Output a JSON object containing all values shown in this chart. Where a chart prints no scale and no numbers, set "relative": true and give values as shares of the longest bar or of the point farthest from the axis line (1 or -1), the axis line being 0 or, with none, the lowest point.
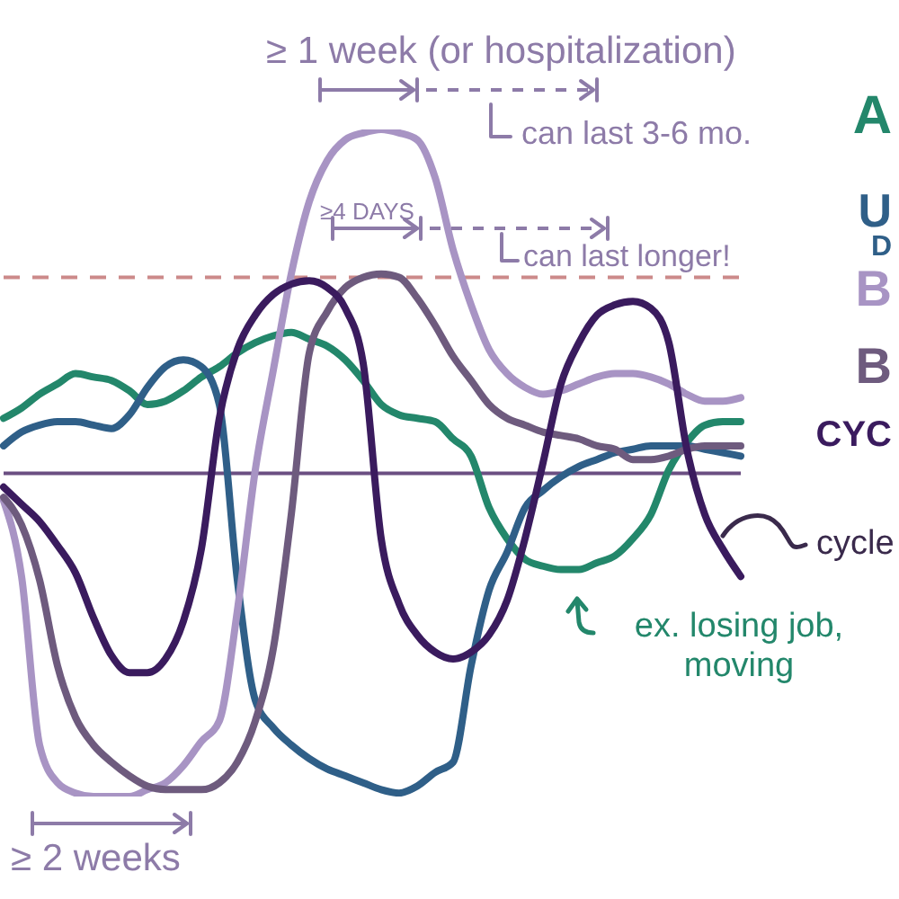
{
  "chart_data": {
    "type": "line",
    "relative": true,
    "legend": "right",
    "categories": [
      null,
      null,
      null,
      null,
      null,
      null,
      null,
      null,
      null,
      null,
      null,
      null,
      null,
      null,
      null,
      null,
      null,
      null,
      null,
      null,
      null,
      null,
      null,
      null,
      null,
      null,
      null,
      null,
      null,
      null,
      null,
      null,
      null,
      null,
      null,
      null,
      null,
      null,
      null,
      null,
      null,
      null
    ],
    "series": [
      {
        "name": "A",
        "color": "#23876b",
        "values": [
          0.16,
          0.19,
          0.23,
          0.26,
          0.29,
          0.28,
          0.27,
          0.24,
          0.2,
          0.21,
          0.24,
          0.28,
          0.31,
          0.35,
          0.38,
          0.4,
          0.41,
          0.39,
          0.37,
          0.33,
          0.27,
          0.2,
          0.17,
          0.16,
          0.15,
          0.1,
          0.05,
          -0.1,
          -0.19,
          -0.25,
          -0.27,
          -0.28,
          -0.28,
          -0.26,
          -0.24,
          -0.19,
          -0.12,
          0.01,
          0.09,
          0.14,
          0.15,
          0.15
        ]
      },
      {
        "name": "U\nD",
        "color": "#2f5f88",
        "values": [
          0.08,
          0.12,
          0.14,
          0.15,
          0.15,
          0.14,
          0.13,
          0.17,
          0.25,
          0.31,
          0.33,
          0.31,
          0.2,
          -0.31,
          -0.66,
          -0.74,
          -0.79,
          -0.83,
          -0.86,
          -0.88,
          -0.9,
          -0.92,
          -0.93,
          -0.91,
          -0.87,
          -0.84,
          -0.56,
          -0.34,
          -0.23,
          -0.1,
          -0.05,
          -0.01,
          0.02,
          0.04,
          0.06,
          0.07,
          0.08,
          0.08,
          0.08,
          0.07,
          0.06,
          0.05
        ]
      },
      {
        "name": "B",
        "color": "#a894c4",
        "values": [
          -0.08,
          -0.3,
          -0.79,
          -0.9,
          -0.93,
          -0.94,
          -0.94,
          -0.94,
          -0.92,
          -0.9,
          -0.85,
          -0.78,
          -0.72,
          -0.4,
          0.01,
          0.3,
          0.58,
          0.79,
          0.91,
          0.97,
          0.99,
          1.0,
          0.99,
          0.97,
          0.86,
          0.65,
          0.49,
          0.36,
          0.29,
          0.25,
          0.23,
          0.24,
          0.26,
          0.28,
          0.29,
          0.29,
          0.28,
          0.26,
          0.23,
          0.21,
          0.21,
          0.22
        ]
      },
      {
        "name": "B",
        "color": "#6e5b7e",
        "values": [
          -0.07,
          -0.15,
          -0.31,
          -0.56,
          -0.71,
          -0.79,
          -0.84,
          -0.88,
          -0.91,
          -0.92,
          -0.92,
          -0.92,
          -0.9,
          -0.84,
          -0.72,
          -0.51,
          -0.12,
          0.35,
          0.47,
          0.54,
          0.57,
          0.58,
          0.57,
          0.51,
          0.43,
          0.34,
          0.27,
          0.2,
          0.16,
          0.14,
          0.12,
          0.11,
          0.1,
          0.08,
          0.07,
          0.04,
          0.04,
          0.05,
          0.07,
          0.08,
          0.08,
          0.08
        ]
      },
      {
        "name": "CYC",
        "color": "#3a1b5e",
        "values": [
          -0.04,
          -0.09,
          -0.14,
          -0.21,
          -0.29,
          -0.42,
          -0.53,
          -0.58,
          -0.58,
          -0.54,
          -0.43,
          -0.22,
          0.16,
          0.36,
          0.46,
          0.52,
          0.55,
          0.56,
          0.54,
          0.48,
          0.32,
          -0.19,
          -0.38,
          -0.47,
          -0.52,
          -0.54,
          -0.52,
          -0.47,
          -0.37,
          -0.19,
          0.03,
          0.26,
          0.38,
          0.46,
          0.49,
          0.5,
          0.48,
          0.38,
          0.07,
          -0.12,
          -0.22,
          -0.3
        ]
      }
    ],
    "ref_lines": [
      {
        "axis": "y",
        "value": 0,
        "color": "#6b4f82"
      },
      {
        "axis": "y",
        "value": 0.57,
        "color": "#cc8a8a",
        "line_style": "dashed"
      }
    ],
    "annotations": [
      "≥ 1 week (or hospitalization)",
      "can last 3-6 mo.",
      "≥4 DAYS",
      "can last longer!",
      "cycle",
      "ex. losing job, moving",
      "≥ 2 weeks"
    ]
  }
}
